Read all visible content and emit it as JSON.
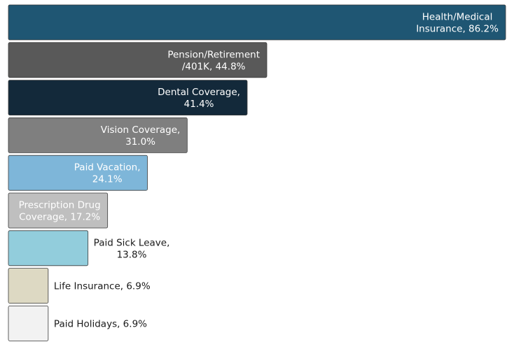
{
  "chart_data": {
    "type": "bar",
    "orientation": "horizontal",
    "values": [
      86.2,
      44.8,
      41.4,
      31.0,
      24.1,
      17.2,
      13.8,
      6.9,
      6.9
    ],
    "value_labels": [
      [
        "Health/Medical",
        "Insurance, 86.2%"
      ],
      [
        "Pension/Retirement",
        "/401K, 44.8%"
      ],
      [
        "Dental Coverage,",
        "41.4%"
      ],
      [
        "Vision Coverage,",
        "31.0%"
      ],
      [
        "Paid Vacation,",
        "24.1%"
      ],
      [
        "Prescription Drug",
        "Coverage, 17.2%"
      ],
      [
        "Paid Sick Leave,",
        "13.8%"
      ],
      [
        "Life Insurance, 6.9%"
      ],
      [
        "Paid Holidays, 6.9%"
      ]
    ],
    "colors": [
      "#1f5673",
      "#595959",
      "#13293a",
      "#7f7f7f",
      "#7eb6d9",
      "#bfbfbf",
      "#92cddc",
      "#ddd9c3",
      "#f2f2f2"
    ],
    "xlim": [
      0,
      86.2
    ]
  }
}
